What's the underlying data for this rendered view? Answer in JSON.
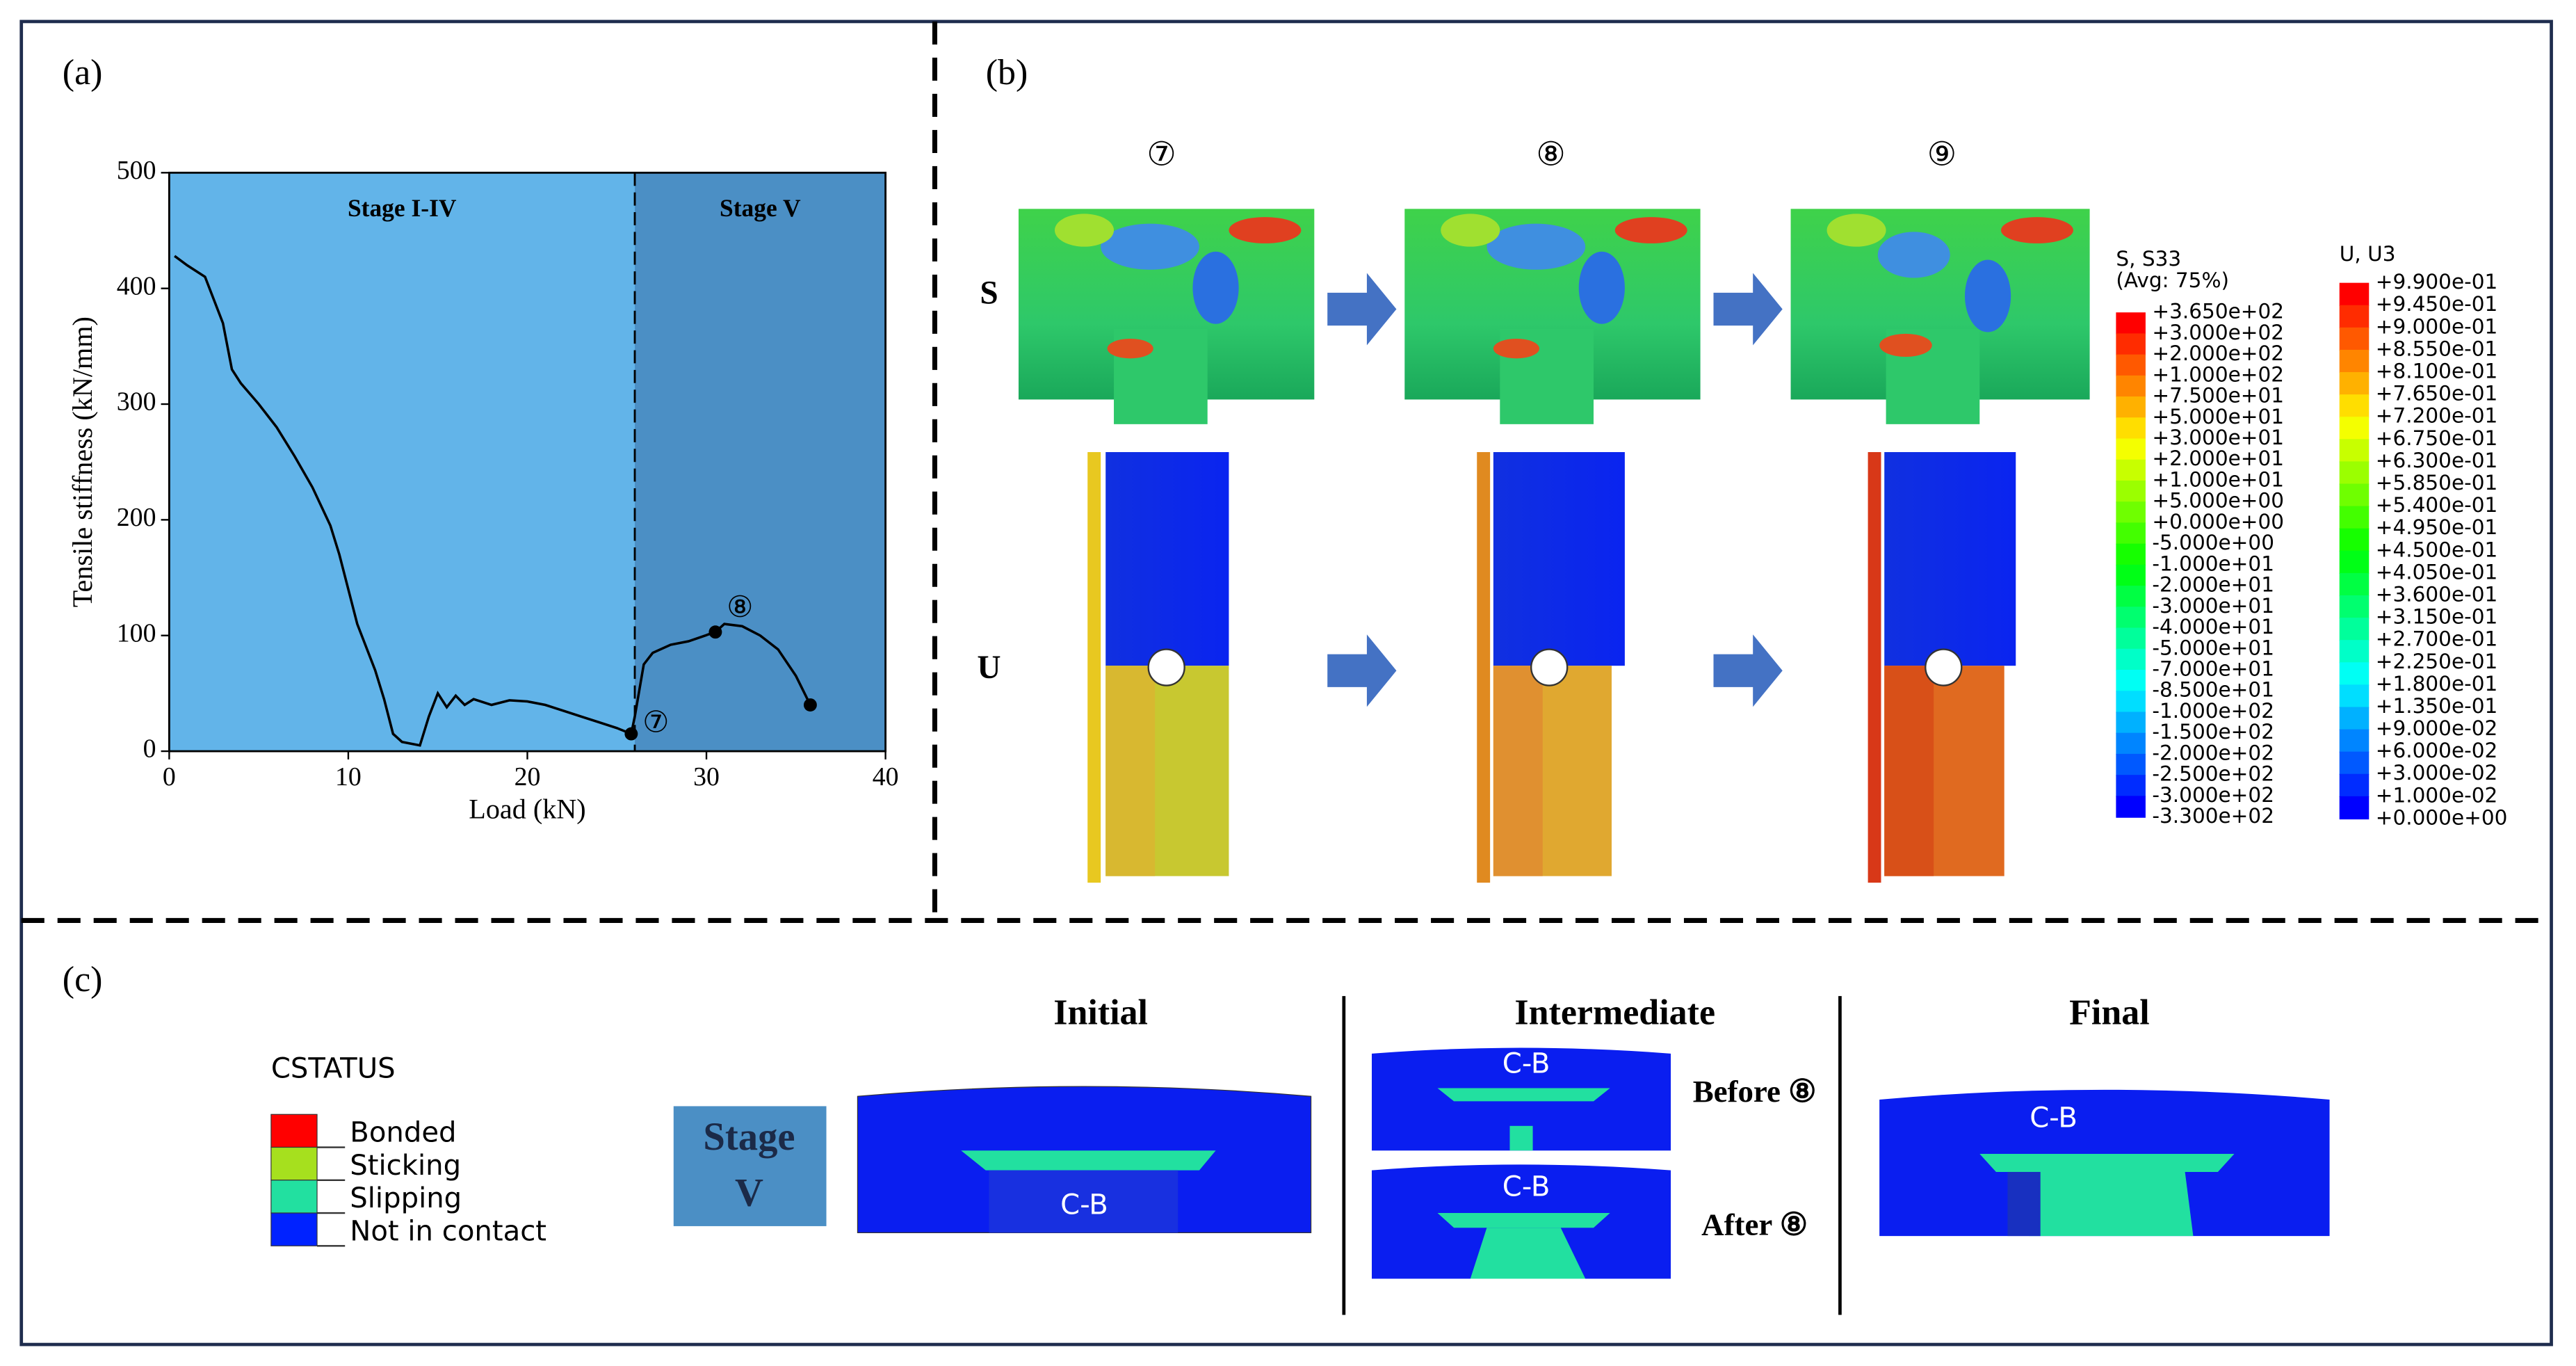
{
  "chart_data": {
    "type": "line",
    "panel_label": "(a)",
    "xlabel": "Load (kN)",
    "ylabel": "Tensile stiffness (kN/mm)",
    "xlim": [
      0,
      40
    ],
    "ylim": [
      0,
      500
    ],
    "xticks": [
      0,
      10,
      20,
      30,
      40
    ],
    "yticks": [
      0,
      100,
      200,
      300,
      400,
      500
    ],
    "regions": [
      {
        "label": "Stage I-IV",
        "range": [
          0,
          26
        ],
        "color": "#62b4e9"
      },
      {
        "label": "Stage V",
        "range": [
          26,
          40
        ],
        "color": "#4b8fc5"
      }
    ],
    "series": [
      {
        "color": "#000000",
        "x": [
          0.3,
          1,
          2,
          3,
          3.5,
          4,
          5,
          6,
          7,
          8,
          9,
          9.5,
          10,
          10.5,
          11,
          11.5,
          12,
          12.5,
          13,
          14,
          14.5,
          15,
          15.5,
          16,
          16.5,
          17,
          18,
          19,
          20,
          21,
          22,
          23,
          24,
          25,
          25.8,
          26,
          26.5,
          27,
          28,
          29,
          30.5,
          31,
          32,
          33,
          34,
          35,
          35.8
        ],
        "values": [
          428,
          420,
          410,
          370,
          330,
          318,
          300,
          280,
          255,
          228,
          195,
          170,
          140,
          110,
          90,
          70,
          45,
          15,
          8,
          5,
          30,
          50,
          38,
          48,
          40,
          45,
          40,
          44,
          43,
          40,
          35,
          30,
          25,
          20,
          15,
          30,
          75,
          85,
          92,
          95,
          103,
          110,
          108,
          100,
          88,
          65,
          40
        ]
      }
    ],
    "points": [
      {
        "x": 25.8,
        "y": 15,
        "label": "⑦"
      },
      {
        "x": 30.5,
        "y": 103,
        "label": "⑧"
      },
      {
        "x": 35.8,
        "y": 40
      }
    ]
  },
  "panel_b": {
    "panel_label": "(b)",
    "steps": [
      "⑦",
      "⑧",
      "⑨"
    ],
    "rows": [
      "S",
      "U"
    ],
    "s_legend": {
      "title": "S, S33",
      "subtitle": "(Avg: 75%)",
      "labels": [
        "+3.650e+02",
        "+3.000e+02",
        "+2.000e+02",
        "+1.000e+02",
        "+7.500e+01",
        "+5.000e+01",
        "+3.000e+01",
        "+2.000e+01",
        "+1.000e+01",
        "+5.000e+00",
        "+0.000e+00",
        "-5.000e+00",
        "-1.000e+01",
        "-2.000e+01",
        "-3.000e+01",
        "-4.000e+01",
        "-5.000e+01",
        "-7.000e+01",
        "-8.500e+01",
        "-1.000e+02",
        "-1.500e+02",
        "-2.000e+02",
        "-2.500e+02",
        "-3.000e+02",
        "-3.300e+02"
      ]
    },
    "u_legend": {
      "title": "U, U3",
      "labels": [
        "+9.900e-01",
        "+9.450e-01",
        "+9.000e-01",
        "+8.550e-01",
        "+8.100e-01",
        "+7.650e-01",
        "+7.200e-01",
        "+6.750e-01",
        "+6.300e-01",
        "+5.850e-01",
        "+5.400e-01",
        "+4.950e-01",
        "+4.500e-01",
        "+4.050e-01",
        "+3.600e-01",
        "+3.150e-01",
        "+2.700e-01",
        "+2.250e-01",
        "+1.800e-01",
        "+1.350e-01",
        "+9.000e-02",
        "+6.000e-02",
        "+3.000e-02",
        "+1.000e-02",
        "+0.000e+00"
      ]
    }
  },
  "panel_c": {
    "panel_label": "(c)",
    "legend": {
      "title": "CSTATUS",
      "items": [
        {
          "label": "Bonded",
          "color": "#ff0000"
        },
        {
          "label": "Sticking",
          "color": "#a6e01e"
        },
        {
          "label": "Slipping",
          "color": "#22e0a0"
        },
        {
          "label": "Not in contact",
          "color": "#0022ff"
        }
      ]
    },
    "stage": [
      "Stage",
      "V"
    ],
    "columns": [
      "Initial",
      "Intermediate",
      "Final"
    ],
    "contact_label": "C-B",
    "substages": [
      "Before ⑧",
      "After ⑧"
    ]
  }
}
